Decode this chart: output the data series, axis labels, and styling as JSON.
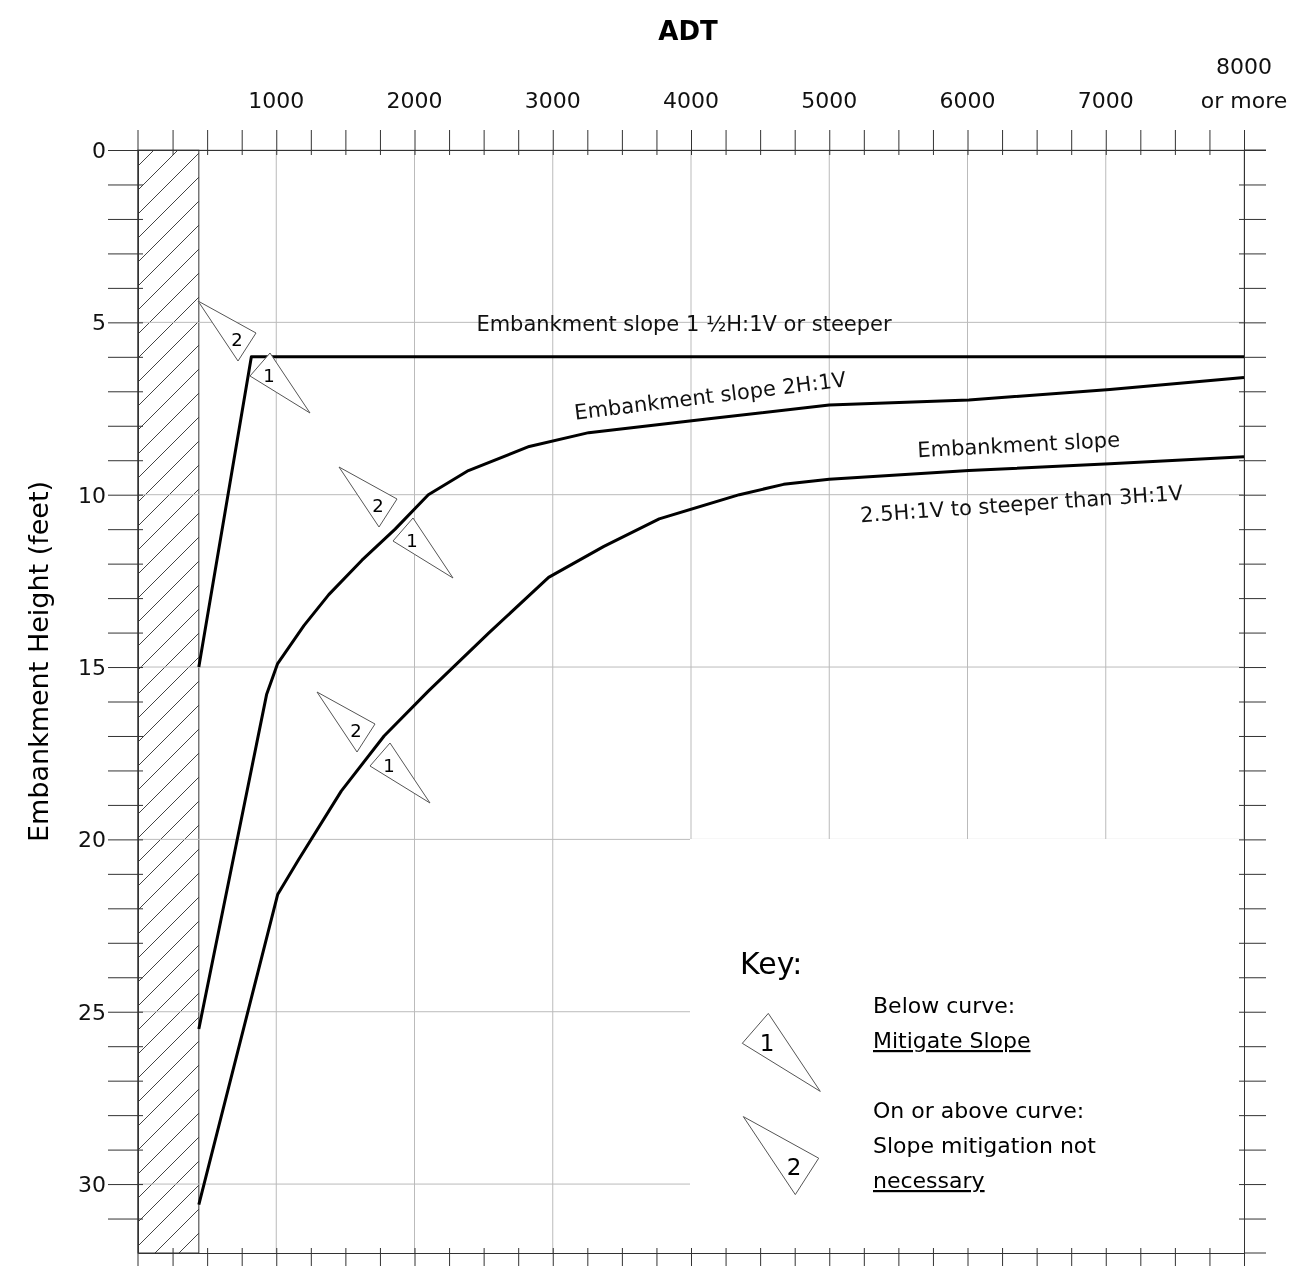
{
  "chart_data": {
    "type": "line",
    "xlabel": "ADT",
    "ylabel": "Embankment Height (feet)",
    "xlim": [
      0,
      8000
    ],
    "ylim": [
      32,
      0
    ],
    "xticks": [
      {
        "value": 250,
        "label": null
      },
      {
        "value": 500,
        "label": null
      },
      {
        "value": 750,
        "label": null
      },
      1000,
      {
        "value": 1250,
        "label": null
      },
      {
        "value": 1500,
        "label": null
      },
      {
        "value": 1750,
        "label": null
      },
      2000,
      {
        "value": 2250,
        "label": null
      },
      {
        "value": 2500,
        "label": null
      },
      {
        "value": 2750,
        "label": null
      },
      3000,
      {
        "value": 3250,
        "label": null
      },
      {
        "value": 3500,
        "label": null
      },
      {
        "value": 3750,
        "label": null
      },
      4000,
      {
        "value": 4250,
        "label": null
      },
      {
        "value": 4500,
        "label": null
      },
      {
        "value": 4750,
        "label": null
      },
      5000,
      {
        "value": 5250,
        "label": null
      },
      {
        "value": 5500,
        "label": null
      },
      {
        "value": 5750,
        "label": null
      },
      6000,
      {
        "value": 6250,
        "label": null
      },
      {
        "value": 6500,
        "label": null
      },
      {
        "value": 6750,
        "label": null
      },
      7000,
      {
        "value": 7250,
        "label": null
      },
      {
        "value": 7500,
        "label": null
      },
      {
        "value": 7750,
        "label": null
      },
      {
        "value": 8000,
        "label": "8000 or more"
      }
    ],
    "yticks": [
      0,
      {
        "value": 1,
        "label": null
      },
      {
        "value": 2,
        "label": null
      },
      {
        "value": 3,
        "label": null
      },
      {
        "value": 4,
        "label": null
      },
      5,
      {
        "value": 6,
        "label": null
      },
      {
        "value": 7,
        "label": null
      },
      {
        "value": 8,
        "label": null
      },
      {
        "value": 9,
        "label": null
      },
      10,
      {
        "value": 11,
        "label": null
      },
      {
        "value": 12,
        "label": null
      },
      {
        "value": 13,
        "label": null
      },
      {
        "value": 14,
        "label": null
      },
      15,
      {
        "value": 16,
        "label": null
      },
      {
        "value": 17,
        "label": null
      },
      {
        "value": 18,
        "label": null
      },
      {
        "value": 19,
        "label": null
      },
      20,
      {
        "value": 21,
        "label": null
      },
      {
        "value": 22,
        "label": null
      },
      {
        "value": 23,
        "label": null
      },
      {
        "value": 24,
        "label": null
      },
      25,
      {
        "value": 26,
        "label": null
      },
      {
        "value": 27,
        "label": null
      },
      {
        "value": 28,
        "label": null
      },
      {
        "value": 29,
        "label": null
      },
      30,
      {
        "value": 31,
        "label": null
      }
    ],
    "grid": true,
    "line_style": "solid",
    "bands": [
      {
        "axis": "x",
        "from": 0,
        "to": 440
      }
    ],
    "series": [
      {
        "color": "#000000",
        "x": [
          440,
          820,
          8000
        ],
        "values": [
          15,
          6.0,
          6.0
        ]
      },
      {
        "color": "#000000",
        "x": [
          440,
          930,
          1010,
          1200,
          1380,
          1620,
          1860,
          2100,
          2390,
          2830,
          3260,
          4130,
          5000,
          6010,
          7030,
          8000
        ],
        "values": [
          25.5,
          15.8,
          14.9,
          13.8,
          12.9,
          11.9,
          11.0,
          10.0,
          9.3,
          8.6,
          8.2,
          7.8,
          7.4,
          7.25,
          6.95,
          6.6
        ]
      },
      {
        "color": "#000000",
        "x": [
          440,
          1010,
          1160,
          1470,
          1780,
          2100,
          2540,
          2970,
          3370,
          3770,
          4350,
          4670,
          5000,
          6010,
          7030,
          8000
        ],
        "values": [
          30.6,
          21.6,
          20.6,
          18.6,
          17.0,
          15.7,
          14.0,
          12.4,
          11.5,
          10.7,
          10.0,
          9.7,
          9.55,
          9.3,
          9.1,
          8.9
        ]
      }
    ],
    "annotations": [
      "Embankment slope 1 ½H:1V or steeper",
      "Embankment slope 2H:1V",
      "Embankment slope",
      "2.5H:1V to steeper than 3H:1V",
      "2",
      "1",
      "2",
      "1",
      "2",
      "1",
      "Key:",
      "1",
      "Below curve:",
      "Mitigate Slope",
      "2",
      "On or above curve:",
      "Slope mitigation not necessary"
    ]
  }
}
